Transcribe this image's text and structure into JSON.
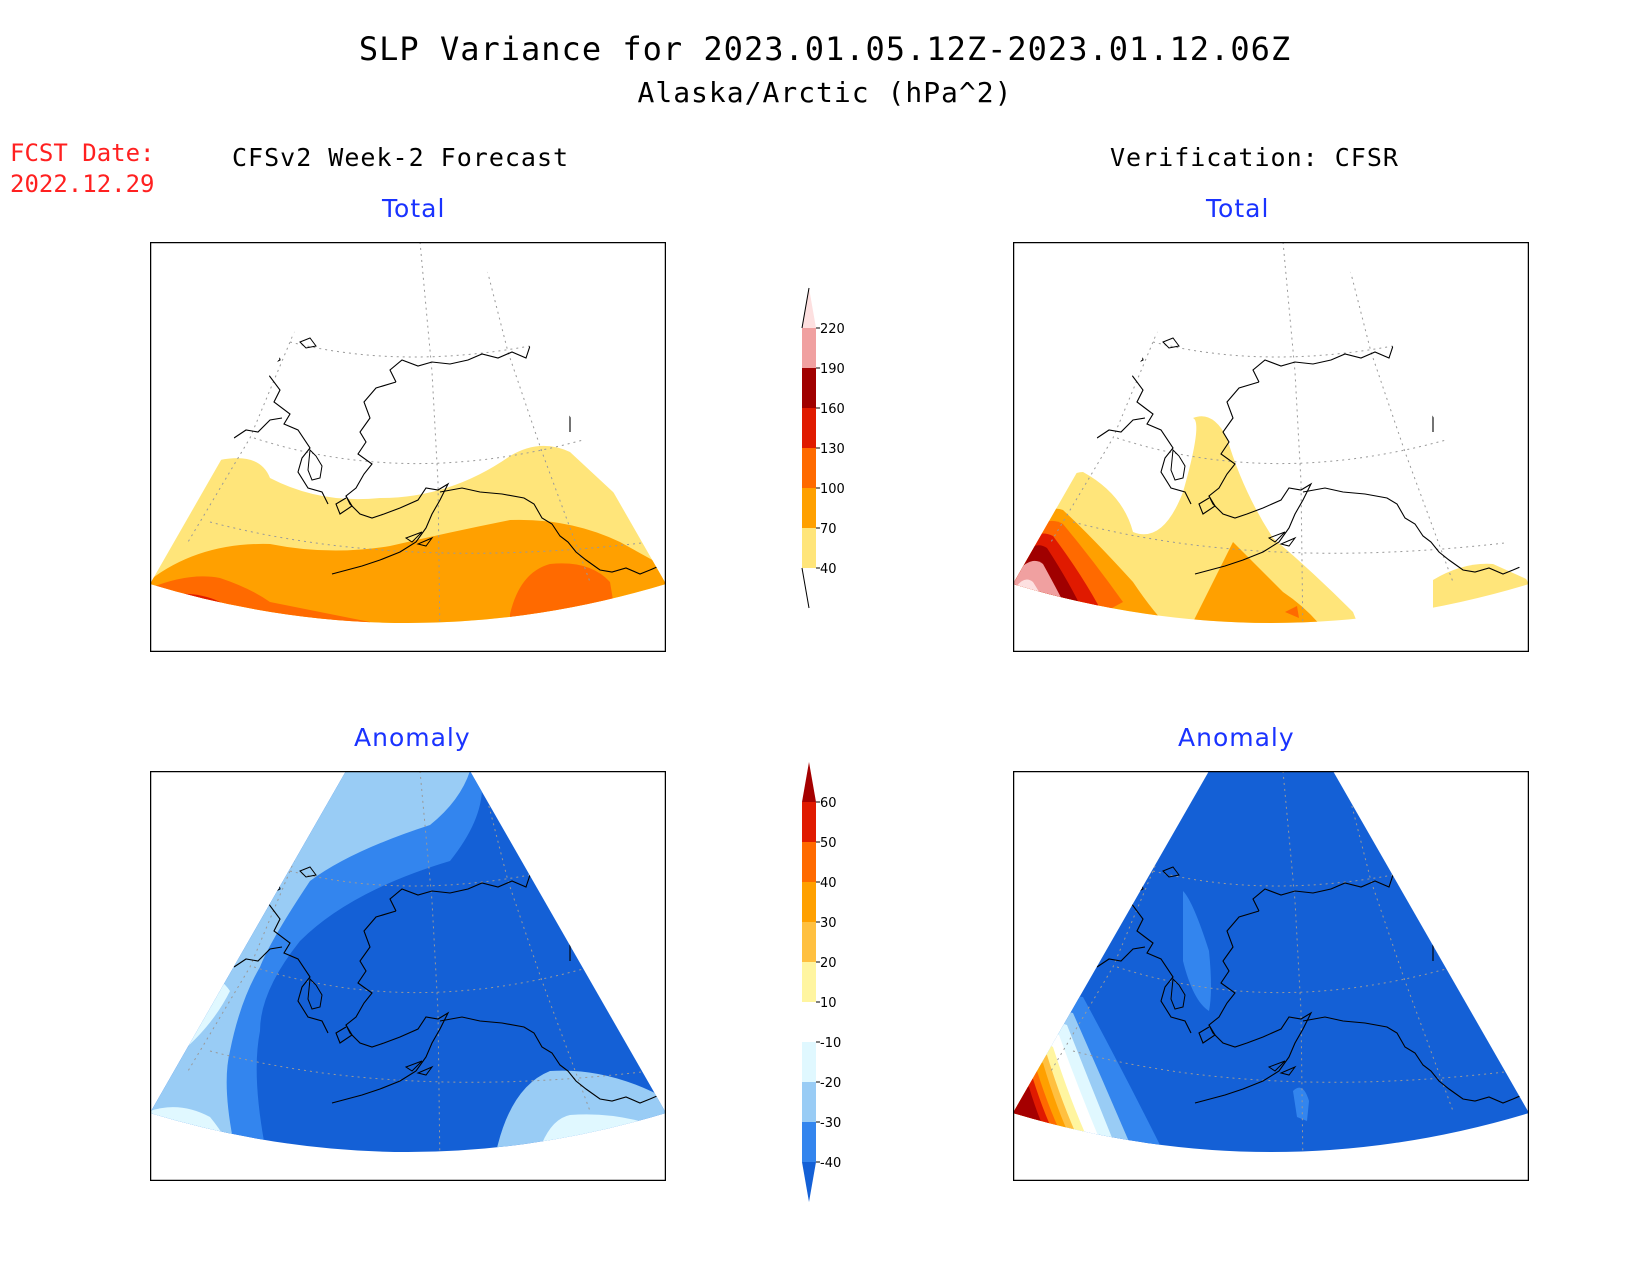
{
  "title_line1": "SLP Variance for 2023.01.05.12Z-2023.01.12.06Z",
  "title_line2": "Alaska/Arctic (hPa^2)",
  "fcst_date_label": "FCST Date:",
  "fcst_date_value": "2022.12.29",
  "left_column_title": "CFSv2 Week-2 Forecast",
  "right_column_title": "Verification: CFSR",
  "panels": {
    "forecast_total_title": "Total",
    "forecast_anomaly_title": "Anomaly",
    "verification_total_title": "Total",
    "verification_anomaly_title": "Anomaly"
  },
  "total_colorbar": {
    "labels": [
      "220",
      "190",
      "160",
      "130",
      "100",
      "70",
      "40"
    ],
    "colors": [
      "#fde0e0",
      "#f0a0a0",
      "#a00000",
      "#e01a00",
      "#ff6a00",
      "#ffa000",
      "#ffe57a"
    ]
  },
  "anomaly_colorbar": {
    "labels": [
      "60",
      "50",
      "40",
      "30",
      "20",
      "10",
      "-10",
      "-20",
      "-30",
      "-40"
    ],
    "colors": [
      "#a50000",
      "#e01a00",
      "#ff6a00",
      "#ffa000",
      "#ffc040",
      "#fff5a0",
      "#ffffff",
      "#e0f8ff",
      "#99ccf5",
      "#3385ee",
      "#1460d6"
    ]
  },
  "colors": {
    "title_red": "#ff2020",
    "subtitle_blue": "#1a33ff"
  }
}
